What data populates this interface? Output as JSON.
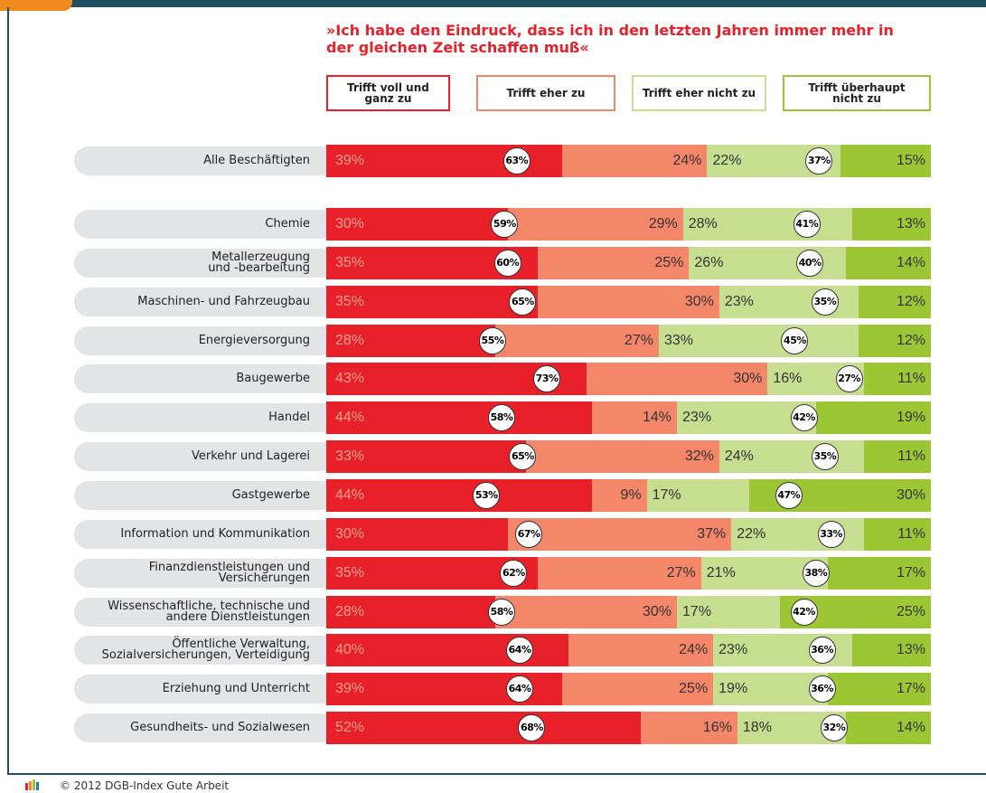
{
  "chart_data": {
    "type": "stacked-bar-horizontal",
    "title": "»Ich habe den Eindruck, dass ich in den letzten Jahren immer mehr in\nder gleichen Zeit schaffen muß«",
    "categories": [
      "Alle Beschäftigten",
      "Chemie",
      "Metallerzeugung\nund -bearbeitung",
      "Maschinen- und Fahrzeugbau",
      "Energieversorgung",
      "Baugewerbe",
      "Handel",
      "Verkehr und Lagerei",
      "Gastgewerbe",
      "Information und Kommunikation",
      "Finanzdienstleistungen und\nVersicherungen",
      "Wissenschaftliche, technische und\nandere Dienstleistungen",
      "Öffentliche Verwaltung,\nSozialversicherungen, Verteidigung",
      "Erziehung und Unterricht",
      "Gesundheits- und Sozialwesen"
    ],
    "series": [
      {
        "name": "Trifft voll und\nganz zu",
        "color": "#e8202a",
        "values": [
          39,
          30,
          35,
          35,
          28,
          43,
          44,
          33,
          44,
          30,
          35,
          28,
          40,
          39,
          52
        ],
        "value_labels": [
          "39%",
          "30%",
          "35%",
          "35%",
          "28%",
          "43%",
          "44%",
          "33%",
          "44%",
          "30%",
          "35%",
          "28%",
          "40%",
          "39%",
          "52%"
        ]
      },
      {
        "name": "Trifft eher zu",
        "color": "#f4866a",
        "values": [
          24,
          29,
          25,
          30,
          27,
          30,
          14,
          32,
          9,
          37,
          27,
          30,
          24,
          25,
          16
        ],
        "value_labels": [
          "24%",
          "29%",
          "25%",
          "30%",
          "27%",
          "30%",
          "14%",
          "32%",
          "9%",
          "37%",
          "27%",
          "30%",
          "24%",
          "25%",
          "16%"
        ]
      },
      {
        "name": "Trifft eher nicht zu",
        "color": "#c7dd90",
        "values": [
          22,
          28,
          26,
          23,
          33,
          16,
          23,
          24,
          17,
          22,
          21,
          17,
          23,
          19,
          18
        ],
        "value_labels": [
          "22%",
          "28%",
          "26%",
          "23%",
          "33%",
          "16%",
          "23%",
          "24%",
          "17%",
          "22%",
          "21%",
          "17%",
          "23%",
          "19%",
          "18%"
        ]
      },
      {
        "name": "Trifft überhaupt\nnicht zu",
        "color": "#9dc634",
        "values": [
          15,
          13,
          14,
          12,
          12,
          11,
          19,
          11,
          30,
          11,
          17,
          25,
          13,
          17,
          14
        ],
        "value_labels": [
          "15%",
          "13%",
          "14%",
          "12%",
          "12%",
          "11%",
          "19%",
          "11%",
          "30%",
          "11%",
          "17%",
          "25%",
          "13%",
          "17%",
          "14%"
        ]
      }
    ],
    "totals": [
      {
        "values": [
          63,
          59,
          60,
          65,
          55,
          73,
          58,
          65,
          53,
          67,
          62,
          58,
          64,
          64,
          68
        ],
        "value_labels": [
          "63%",
          "59%",
          "60%",
          "65%",
          "55%",
          "73%",
          "58%",
          "65%",
          "53%",
          "67%",
          "62%",
          "58%",
          "64%",
          "64%",
          "68%"
        ]
      },
      {
        "values": [
          37,
          41,
          40,
          35,
          45,
          27,
          42,
          35,
          47,
          33,
          38,
          42,
          36,
          36,
          32
        ],
        "value_labels": [
          "37%",
          "41%",
          "40%",
          "35%",
          "45%",
          "27%",
          "42%",
          "35%",
          "47%",
          "33%",
          "38%",
          "42%",
          "36%",
          "36%",
          "32%"
        ]
      }
    ],
    "source": "© 2012 DGB-Index Gute Arbeit"
  }
}
